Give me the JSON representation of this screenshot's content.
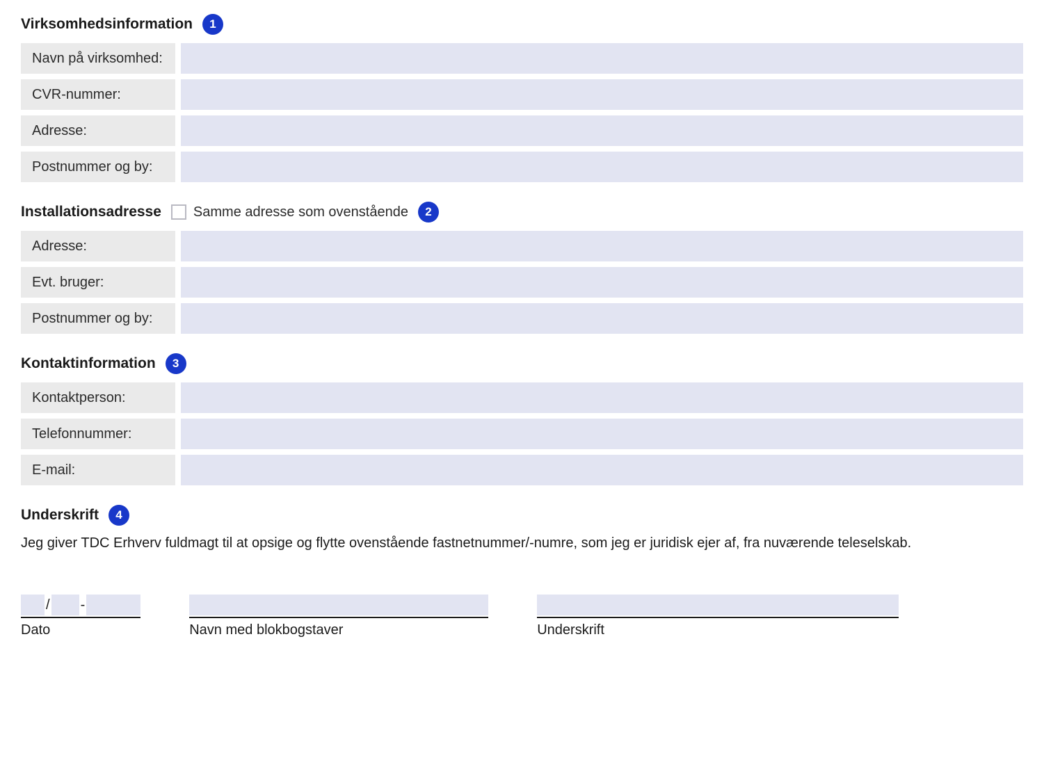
{
  "colors": {
    "badge_bg": "#1838c9",
    "badge_fg": "#ffffff",
    "label_bg": "#eaeaea",
    "input_bg": "#e2e4f2",
    "text": "#1a1a1a",
    "checkbox_border": "#b9b9c2",
    "page_bg": "#ffffff"
  },
  "sections": {
    "company": {
      "title": "Virksomhedsinformation",
      "badge": "1",
      "fields": [
        {
          "label": "Navn på virksomhed:",
          "value": ""
        },
        {
          "label": "CVR-nummer:",
          "value": ""
        },
        {
          "label": "Adresse:",
          "value": ""
        },
        {
          "label": "Postnummer og by:",
          "value": ""
        }
      ]
    },
    "install": {
      "title": "Installationsadresse",
      "badge": "2",
      "same_address_label": "Samme adresse som ovenstående",
      "same_address_checked": false,
      "fields": [
        {
          "label": "Adresse:",
          "value": ""
        },
        {
          "label": "Evt. bruger:",
          "value": ""
        },
        {
          "label": "Postnummer og by:",
          "value": ""
        }
      ]
    },
    "contact": {
      "title": "Kontaktinformation",
      "badge": "3",
      "fields": [
        {
          "label": "Kontaktperson:",
          "value": ""
        },
        {
          "label": "Telefonnummer:",
          "value": ""
        },
        {
          "label": "E-mail:",
          "value": ""
        }
      ]
    },
    "signature": {
      "title": "Underskrift",
      "badge": "4",
      "declaration": "Jeg giver TDC Erhverv fuldmagt til at opsige og flytte ovenstående fastnetnummer/-numre, som jeg er juridisk ejer af, fra nuværende teleselskab.",
      "date": {
        "label": "Dato",
        "sep1": "/",
        "sep2": "-",
        "dd": "",
        "mm": "",
        "yyyy": ""
      },
      "name": {
        "label": "Navn med blokbogstaver",
        "value": ""
      },
      "sig": {
        "label": "Underskrift",
        "value": ""
      }
    }
  }
}
